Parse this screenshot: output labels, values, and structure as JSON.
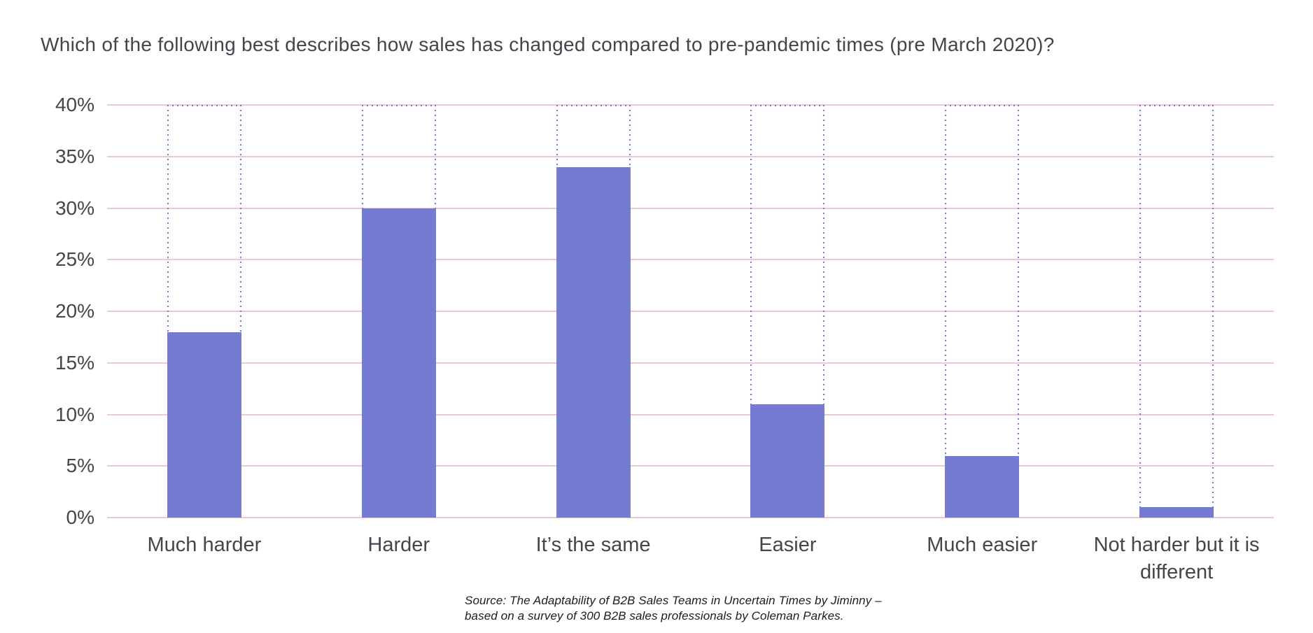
{
  "title": "Which of the following best describes how sales has changed compared to pre-pandemic times (pre March 2020)?",
  "source": {
    "line1": "Source: The Adaptability of B2B Sales Teams in Uncertain Times by Jiminny –",
    "line2": "based on a survey of 300 B2B sales professionals by Coleman Parkes."
  },
  "chart_data": {
    "type": "bar",
    "title": "Which of the following best describes how sales has changed compared to pre-pandemic times (pre March 2020)?",
    "categories": [
      "Much harder",
      "Harder",
      "It’s the same",
      "Easier",
      "Much easier",
      "Not harder but it is different"
    ],
    "values": [
      18,
      30,
      34,
      11,
      6,
      1
    ],
    "unit": "%",
    "xlabel": "",
    "ylabel": "",
    "ylim": [
      0,
      40
    ],
    "ytick_values": [
      0,
      5,
      10,
      15,
      20,
      25,
      30,
      35,
      40
    ],
    "ytick_labels": [
      "0%",
      "5%",
      "10%",
      "15%",
      "20%",
      "25%",
      "30%",
      "35%",
      "40%"
    ],
    "grid": "horizontal",
    "legend": "none",
    "annotations": "each bar has a dotted outline extending up to the 40% gridline",
    "colors": {
      "bar_fill": "#767bd2",
      "dotted_outline": "#7478ce",
      "gridline": "#efc6d4",
      "text": "#42474c",
      "background": "#ffffff"
    }
  }
}
